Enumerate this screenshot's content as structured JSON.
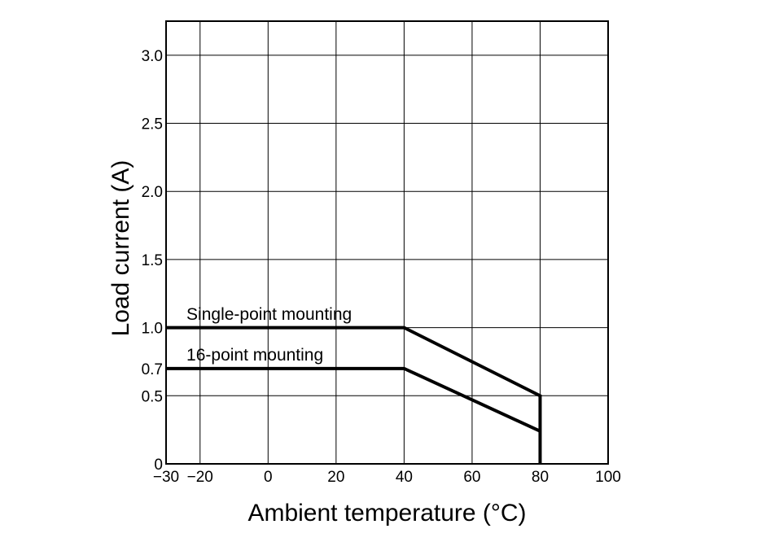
{
  "chart_data": {
    "type": "line",
    "xlabel": "Ambient temperature (°C)",
    "ylabel": "Load current (A)",
    "xlim": [
      -30,
      100
    ],
    "ylim": [
      0,
      3.25
    ],
    "grid": true,
    "x_ticks": [
      {
        "value": -30,
        "label": "−30"
      },
      {
        "value": -20,
        "label": "−20"
      },
      {
        "value": 0,
        "label": "0"
      },
      {
        "value": 20,
        "label": "20"
      },
      {
        "value": 40,
        "label": "40"
      },
      {
        "value": 60,
        "label": "60"
      },
      {
        "value": 80,
        "label": "80"
      },
      {
        "value": 100,
        "label": "100"
      }
    ],
    "y_ticks": [
      {
        "value": 0,
        "label": "0"
      },
      {
        "value": 0.5,
        "label": "0.5"
      },
      {
        "value": 0.7,
        "label": "0.7"
      },
      {
        "value": 1.0,
        "label": "1.0"
      },
      {
        "value": 1.5,
        "label": "1.5"
      },
      {
        "value": 2.0,
        "label": "2.0"
      },
      {
        "value": 2.5,
        "label": "2.5"
      },
      {
        "value": 3.0,
        "label": "3.0"
      }
    ],
    "grid_x": [
      -20,
      0,
      20,
      40,
      60,
      80
    ],
    "grid_y": [
      0.5,
      1.0,
      1.5,
      2.0,
      2.5,
      3.0
    ],
    "series": [
      {
        "name": "Single-point mounting",
        "x": [
          -30,
          40,
          80,
          80
        ],
        "y": [
          1.0,
          1.0,
          0.5,
          0
        ],
        "label_at": [
          -24,
          1.1
        ]
      },
      {
        "name": "16-point mounting",
        "x": [
          -30,
          40,
          80
        ],
        "y": [
          0.7,
          0.7,
          0.24
        ],
        "label_at": [
          -24,
          0.8
        ]
      }
    ]
  }
}
